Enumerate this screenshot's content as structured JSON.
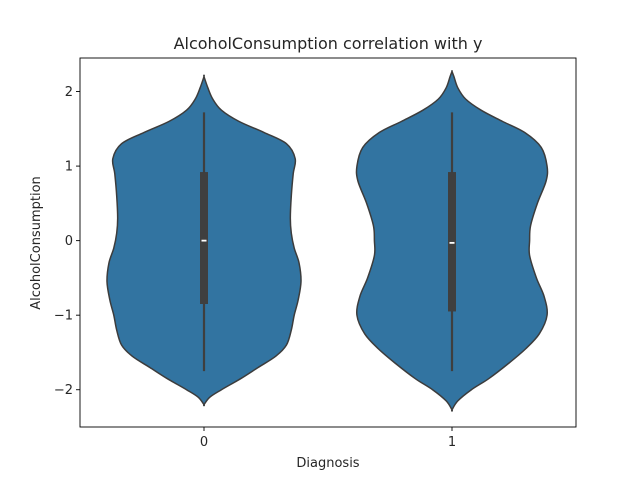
{
  "chart_data": {
    "type": "violin",
    "title": "AlcoholConsumption correlation with y",
    "xlabel": "Diagnosis",
    "ylabel": "AlcoholConsumption",
    "categories": [
      "0",
      "1"
    ],
    "ylim": [
      -2.5,
      2.45
    ],
    "yticks": [
      -2,
      -1,
      0,
      1,
      2
    ],
    "ytick_labels": [
      "−2",
      "−1",
      "0",
      "1",
      "2"
    ],
    "grid": false,
    "fill_color": "#3274a1",
    "edge_color": "#3c3c3c",
    "violins": [
      {
        "category": "0",
        "min": -1.75,
        "q1": -0.85,
        "median": 0.0,
        "q3": 0.92,
        "max": 1.72,
        "kde_min": -2.2,
        "kde_max": 2.2,
        "profile": [
          [
            -2.2,
            0.0
          ],
          [
            -2.1,
            0.06
          ],
          [
            -2.0,
            0.18
          ],
          [
            -1.85,
            0.38
          ],
          [
            -1.7,
            0.56
          ],
          [
            -1.55,
            0.74
          ],
          [
            -1.4,
            0.85
          ],
          [
            -1.2,
            0.9
          ],
          [
            -1.0,
            0.93
          ],
          [
            -0.8,
            0.97
          ],
          [
            -0.55,
            1.0
          ],
          [
            -0.3,
            0.98
          ],
          [
            -0.1,
            0.93
          ],
          [
            0.1,
            0.9
          ],
          [
            0.3,
            0.89
          ],
          [
            0.6,
            0.9
          ],
          [
            0.9,
            0.92
          ],
          [
            1.1,
            0.94
          ],
          [
            1.3,
            0.85
          ],
          [
            1.45,
            0.62
          ],
          [
            1.6,
            0.36
          ],
          [
            1.75,
            0.18
          ],
          [
            1.9,
            0.09
          ],
          [
            2.05,
            0.04
          ],
          [
            2.2,
            0.0
          ]
        ]
      },
      {
        "category": "1",
        "min": -1.75,
        "q1": -0.95,
        "median": -0.03,
        "q3": 0.92,
        "max": 1.72,
        "kde_min": -2.27,
        "kde_max": 2.27,
        "profile": [
          [
            -2.27,
            0.0
          ],
          [
            -2.15,
            0.06
          ],
          [
            -2.0,
            0.2
          ],
          [
            -1.85,
            0.38
          ],
          [
            -1.65,
            0.58
          ],
          [
            -1.45,
            0.76
          ],
          [
            -1.25,
            0.9
          ],
          [
            -1.0,
            0.98
          ],
          [
            -0.75,
            0.95
          ],
          [
            -0.5,
            0.87
          ],
          [
            -0.2,
            0.8
          ],
          [
            0.0,
            0.8
          ],
          [
            0.2,
            0.81
          ],
          [
            0.5,
            0.88
          ],
          [
            0.8,
            0.97
          ],
          [
            1.0,
            0.98
          ],
          [
            1.25,
            0.92
          ],
          [
            1.45,
            0.75
          ],
          [
            1.6,
            0.52
          ],
          [
            1.75,
            0.3
          ],
          [
            1.9,
            0.14
          ],
          [
            2.05,
            0.06
          ],
          [
            2.2,
            0.02
          ],
          [
            2.27,
            0.0
          ]
        ]
      }
    ]
  }
}
